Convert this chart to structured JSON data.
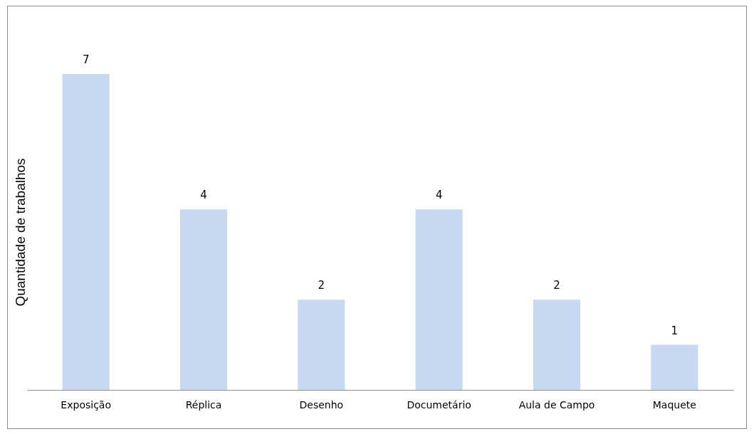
{
  "chart_data": {
    "type": "bar",
    "ylabel": "Quantidade de trabalhos",
    "categories": [
      "Exposição",
      "Réplica",
      "Desenho",
      "Documetário",
      "Aula de Campo",
      "Maquete"
    ],
    "values": [
      7,
      4,
      2,
      4,
      2,
      1
    ],
    "color": "#c6d9f1",
    "data_labels": true
  }
}
